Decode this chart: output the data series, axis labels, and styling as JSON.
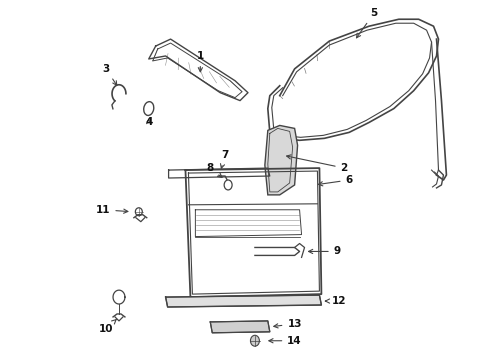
{
  "background_color": "#ffffff",
  "line_color": "#444444",
  "text_color": "#111111",
  "fig_width": 4.9,
  "fig_height": 3.6,
  "dpi": 100
}
